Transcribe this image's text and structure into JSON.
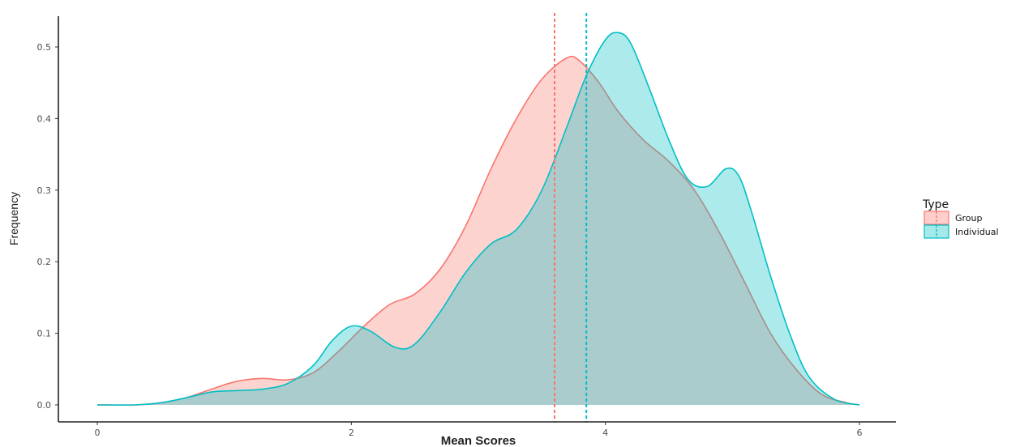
{
  "chart_data": {
    "type": "area",
    "title": "",
    "xlabel": "Mean Scores",
    "ylabel": "Frequency",
    "xlim": [
      0,
      6
    ],
    "ylim": [
      0,
      0.5
    ],
    "x_ticks": [
      0,
      2,
      4,
      6
    ],
    "y_ticks": [
      0.0,
      0.1,
      0.2,
      0.3,
      0.4,
      0.5
    ],
    "y_tick_labels": [
      "0.0",
      "0.1",
      "0.2",
      "0.3",
      "0.4",
      "0.5"
    ],
    "grid": false,
    "legend": {
      "title": "Type",
      "placement": "right"
    },
    "series": [
      {
        "name": "Group",
        "color": "#F8766D",
        "mean": 3.6,
        "points": [
          [
            0.0,
            0.0
          ],
          [
            0.3,
            0.0
          ],
          [
            0.5,
            0.003
          ],
          [
            0.7,
            0.01
          ],
          [
            0.9,
            0.022
          ],
          [
            1.1,
            0.033
          ],
          [
            1.3,
            0.037
          ],
          [
            1.5,
            0.035
          ],
          [
            1.7,
            0.045
          ],
          [
            1.9,
            0.075
          ],
          [
            2.1,
            0.11
          ],
          [
            2.3,
            0.14
          ],
          [
            2.5,
            0.155
          ],
          [
            2.7,
            0.19
          ],
          [
            2.9,
            0.25
          ],
          [
            3.1,
            0.33
          ],
          [
            3.3,
            0.4
          ],
          [
            3.5,
            0.455
          ],
          [
            3.7,
            0.485
          ],
          [
            3.8,
            0.48
          ],
          [
            3.95,
            0.45
          ],
          [
            4.1,
            0.41
          ],
          [
            4.3,
            0.37
          ],
          [
            4.5,
            0.34
          ],
          [
            4.7,
            0.3
          ],
          [
            4.9,
            0.24
          ],
          [
            5.1,
            0.17
          ],
          [
            5.3,
            0.1
          ],
          [
            5.5,
            0.05
          ],
          [
            5.7,
            0.015
          ],
          [
            5.9,
            0.003
          ],
          [
            6.0,
            0.0
          ]
        ]
      },
      {
        "name": "Individual",
        "color": "#00BFC4",
        "mean": 3.85,
        "points": [
          [
            0.0,
            0.0
          ],
          [
            0.3,
            0.0
          ],
          [
            0.5,
            0.003
          ],
          [
            0.7,
            0.01
          ],
          [
            0.9,
            0.018
          ],
          [
            1.1,
            0.02
          ],
          [
            1.3,
            0.022
          ],
          [
            1.5,
            0.03
          ],
          [
            1.7,
            0.055
          ],
          [
            1.85,
            0.09
          ],
          [
            2.0,
            0.11
          ],
          [
            2.15,
            0.103
          ],
          [
            2.35,
            0.08
          ],
          [
            2.5,
            0.085
          ],
          [
            2.7,
            0.13
          ],
          [
            2.9,
            0.185
          ],
          [
            3.1,
            0.225
          ],
          [
            3.3,
            0.245
          ],
          [
            3.5,
            0.3
          ],
          [
            3.7,
            0.39
          ],
          [
            3.85,
            0.46
          ],
          [
            4.0,
            0.51
          ],
          [
            4.1,
            0.52
          ],
          [
            4.2,
            0.505
          ],
          [
            4.35,
            0.44
          ],
          [
            4.5,
            0.37
          ],
          [
            4.65,
            0.315
          ],
          [
            4.8,
            0.305
          ],
          [
            4.95,
            0.33
          ],
          [
            5.05,
            0.32
          ],
          [
            5.15,
            0.27
          ],
          [
            5.3,
            0.18
          ],
          [
            5.45,
            0.1
          ],
          [
            5.6,
            0.04
          ],
          [
            5.8,
            0.008
          ],
          [
            6.0,
            0.0
          ]
        ]
      }
    ]
  }
}
